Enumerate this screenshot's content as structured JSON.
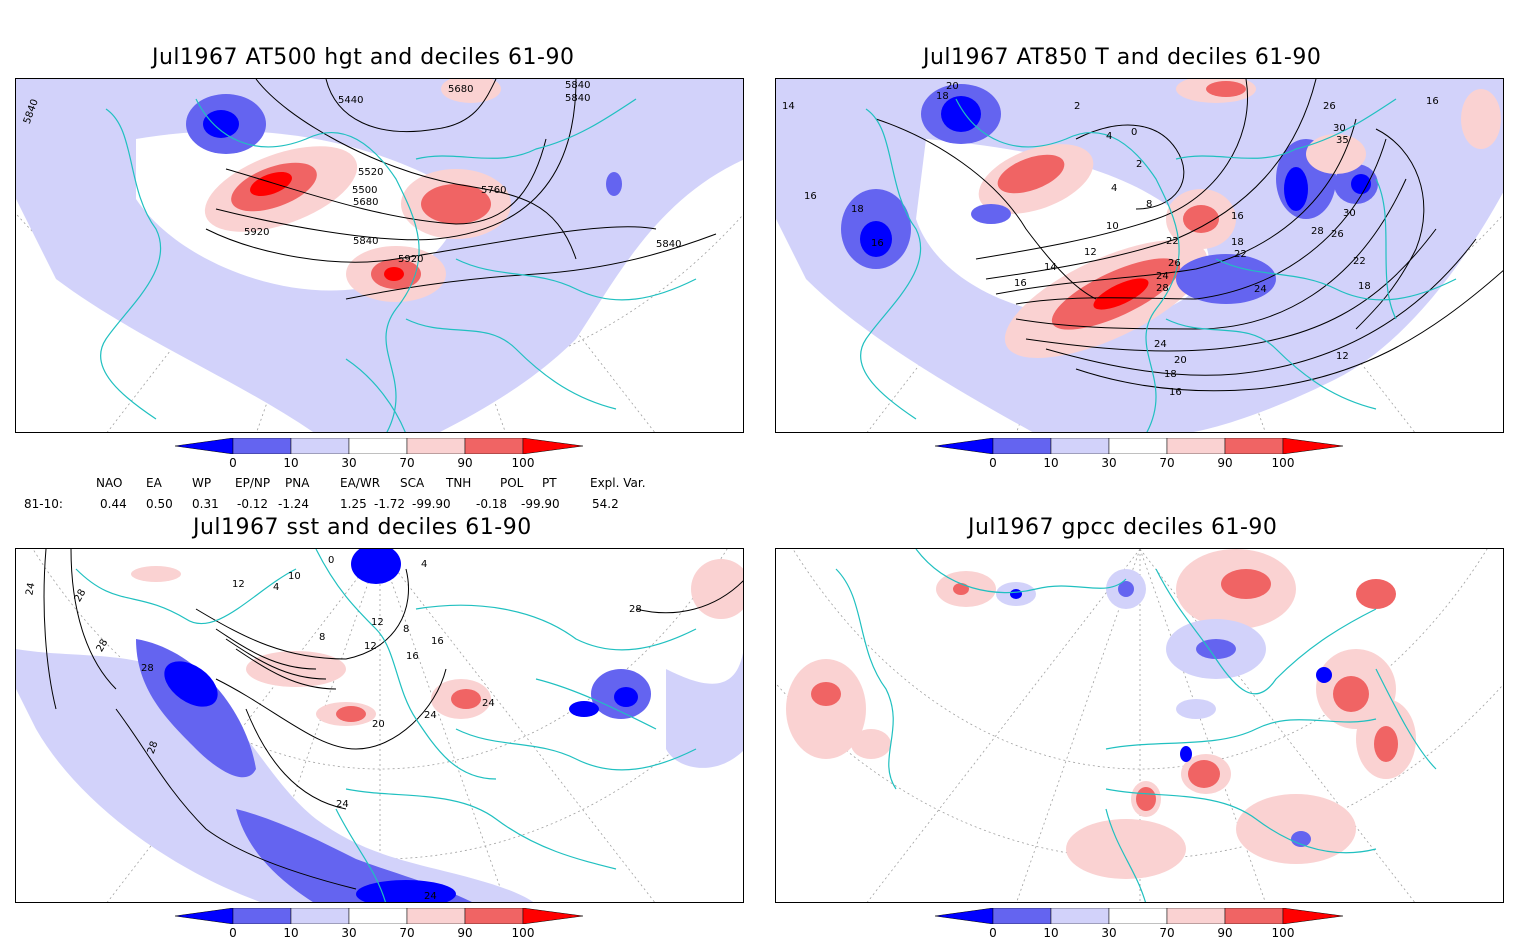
{
  "panels": [
    {
      "title": "Jul1967 AT500 hgt and deciles 61-90",
      "contour_labels": [
        "5840",
        "5440",
        "5680",
        "5840",
        "5840",
        "5520",
        "5500",
        "5680",
        "5760",
        "5920",
        "5840",
        "5920",
        "5840"
      ]
    },
    {
      "title": "Jul1967 AT850 T and deciles 61-90",
      "contour_labels": [
        "20",
        "18",
        "14",
        "16",
        "18",
        "16",
        "2",
        "4",
        "0",
        "2",
        "4",
        "8",
        "10",
        "12",
        "14",
        "16",
        "22",
        "26",
        "24",
        "28",
        "24",
        "18",
        "16",
        "20",
        "24",
        "22",
        "18",
        "16",
        "26",
        "30",
        "35",
        "30",
        "28",
        "26",
        "22",
        "18",
        "16",
        "12"
      ]
    },
    {
      "title": "Jul1967 sst and deciles 61-90",
      "contour_labels": [
        "24",
        "28",
        "28",
        "12",
        "4",
        "10",
        "0",
        "4",
        "8",
        "12",
        "16",
        "16",
        "8",
        "12",
        "20",
        "28",
        "24",
        "24",
        "28",
        "24",
        "24",
        "28"
      ]
    },
    {
      "title": "Jul1967 gpcc deciles 61-90",
      "contour_labels": []
    }
  ],
  "colorbar": {
    "ticks": [
      "0",
      "10",
      "30",
      "70",
      "90",
      "100"
    ],
    "colors": [
      "#0000ff",
      "#6464f0",
      "#d2d2fa",
      "#ffffff",
      "#fad2d2",
      "#f06464",
      "#ff0000"
    ]
  },
  "indices": {
    "headers": [
      "NAO",
      "EA",
      "WP",
      "EP/NP",
      "PNA",
      "EA/WR",
      "SCA",
      "TNH",
      "POL",
      "PT",
      "Expl. Var."
    ],
    "row_label": "81-10:",
    "values": [
      "0.44",
      "0.50",
      "0.31",
      "-0.12",
      "-1.24",
      "1.25",
      "-1.72",
      "-99.90",
      "-0.18",
      "-99.90",
      "54.2"
    ]
  },
  "map_colors": {
    "coast": "#20c0c0",
    "grid": "#a0a0a0",
    "contour": "#000000",
    "blue_light": "#d2d2fa",
    "blue_mid": "#6464f0",
    "blue_dark": "#0000ff",
    "red_light": "#fad2d2",
    "red_mid": "#f06464",
    "red_dark": "#ff0000"
  }
}
